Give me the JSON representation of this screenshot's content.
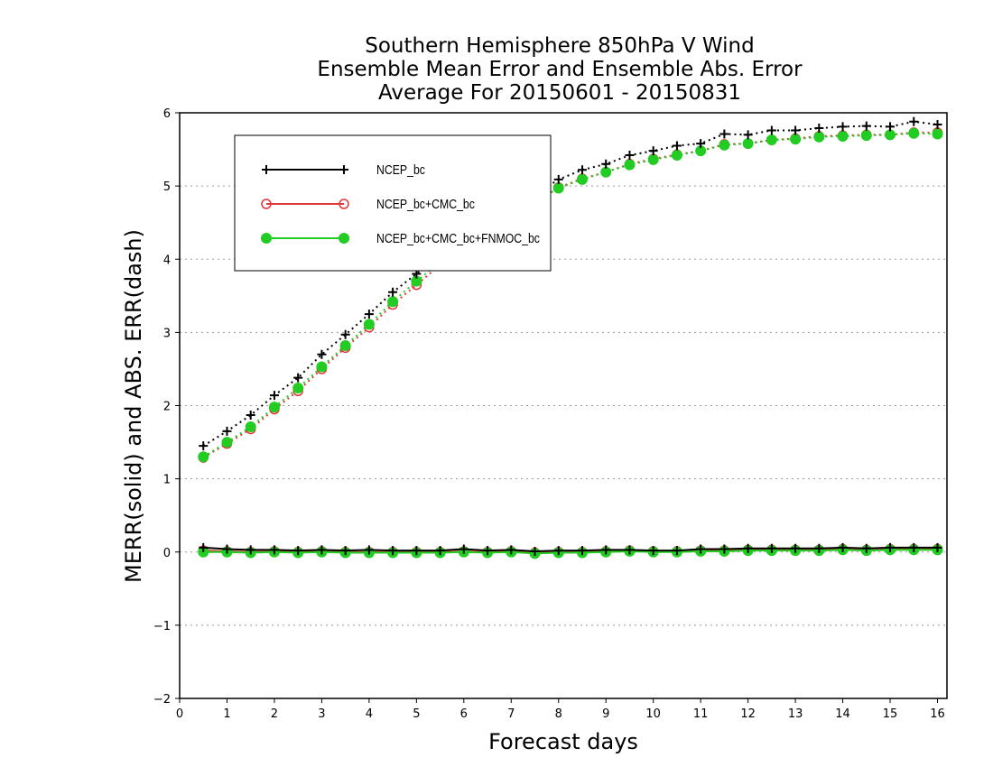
{
  "chart_data": {
    "type": "line",
    "title_lines": [
      "Southern Hemisphere 850hPa V Wind",
      "Ensemble Mean Error and Ensemble Abs. Error",
      "Average For 20150601 - 20150831"
    ],
    "xlabel": "Forecast days",
    "ylabel": "MERR(solid) and ABS. ERR(dash)",
    "xlim": [
      0,
      16.2
    ],
    "ylim": [
      -2,
      6
    ],
    "xticks": [
      0,
      1,
      2,
      3,
      4,
      5,
      6,
      7,
      8,
      9,
      10,
      11,
      12,
      13,
      14,
      15,
      16
    ],
    "yticks": [
      -2,
      -1,
      0,
      1,
      2,
      3,
      4,
      5,
      6
    ],
    "ytick_labels": [
      "−2",
      "−1",
      "0",
      "1",
      "2",
      "3",
      "4",
      "5",
      "6"
    ],
    "grid": "horizontal dotted",
    "legend_position": "top-left",
    "x": [
      0.5,
      1,
      1.5,
      2,
      2.5,
      3,
      3.5,
      4,
      4.5,
      5,
      5.5,
      6,
      6.5,
      7,
      7.5,
      8,
      8.5,
      9,
      9.5,
      10,
      10.5,
      11,
      11.5,
      12,
      12.5,
      13,
      13.5,
      14,
      14.5,
      15,
      15.5,
      16
    ],
    "series": [
      {
        "name": "NCEP_bc",
        "color": "#000000",
        "marker": "plus",
        "abs_err": [
          1.45,
          1.65,
          1.87,
          2.14,
          2.38,
          2.7,
          2.97,
          3.25,
          3.55,
          3.8,
          4.05,
          4.3,
          4.5,
          4.7,
          4.88,
          5.09,
          5.22,
          5.3,
          5.42,
          5.48,
          5.55,
          5.58,
          5.71,
          5.7,
          5.76,
          5.76,
          5.79,
          5.81,
          5.82,
          5.81,
          5.88,
          5.84
        ],
        "mean_err": [
          0.06,
          0.04,
          0.03,
          0.03,
          0.02,
          0.03,
          0.02,
          0.03,
          0.02,
          0.02,
          0.02,
          0.04,
          0.02,
          0.03,
          0.01,
          0.02,
          0.02,
          0.03,
          0.03,
          0.02,
          0.02,
          0.04,
          0.04,
          0.05,
          0.05,
          0.05,
          0.05,
          0.06,
          0.05,
          0.06,
          0.06,
          0.06
        ]
      },
      {
        "name": "NCEP_bc+CMC_bc",
        "color": "#e03838",
        "marker": "open-circle",
        "abs_err": [
          1.29,
          1.48,
          1.68,
          1.95,
          2.2,
          2.5,
          2.79,
          3.07,
          3.38,
          3.65,
          3.92,
          4.15,
          4.38,
          4.58,
          4.76,
          4.98,
          5.1,
          5.19,
          5.3,
          5.37,
          5.43,
          5.48,
          5.57,
          5.58,
          5.63,
          5.65,
          5.68,
          5.69,
          5.7,
          5.7,
          5.73,
          5.73
        ],
        "mean_err": [
          0.02,
          0.01,
          0.0,
          0.01,
          0.0,
          0.01,
          0.0,
          0.0,
          0.0,
          0.0,
          0.0,
          0.01,
          0.0,
          0.01,
          -0.01,
          0.0,
          0.0,
          0.01,
          0.02,
          0.01,
          0.01,
          0.02,
          0.02,
          0.03,
          0.03,
          0.03,
          0.03,
          0.04,
          0.03,
          0.04,
          0.04,
          0.04
        ]
      },
      {
        "name": "NCEP_bc+CMC_bc+FNMOC_bc",
        "color": "#22cc22",
        "marker": "filled-circle",
        "abs_err": [
          1.3,
          1.5,
          1.71,
          1.98,
          2.24,
          2.53,
          2.82,
          3.11,
          3.42,
          3.7,
          3.96,
          4.18,
          4.41,
          4.61,
          4.79,
          4.97,
          5.09,
          5.19,
          5.29,
          5.36,
          5.42,
          5.48,
          5.56,
          5.58,
          5.63,
          5.64,
          5.67,
          5.68,
          5.69,
          5.7,
          5.72,
          5.71
        ],
        "mean_err": [
          0.0,
          0.0,
          -0.01,
          0.0,
          -0.01,
          0.0,
          -0.01,
          -0.01,
          -0.01,
          -0.01,
          -0.01,
          0.0,
          -0.01,
          0.0,
          -0.02,
          -0.01,
          -0.01,
          0.0,
          0.01,
          0.0,
          0.0,
          0.01,
          0.01,
          0.02,
          0.02,
          0.02,
          0.02,
          0.03,
          0.02,
          0.03,
          0.03,
          0.03
        ]
      }
    ]
  }
}
